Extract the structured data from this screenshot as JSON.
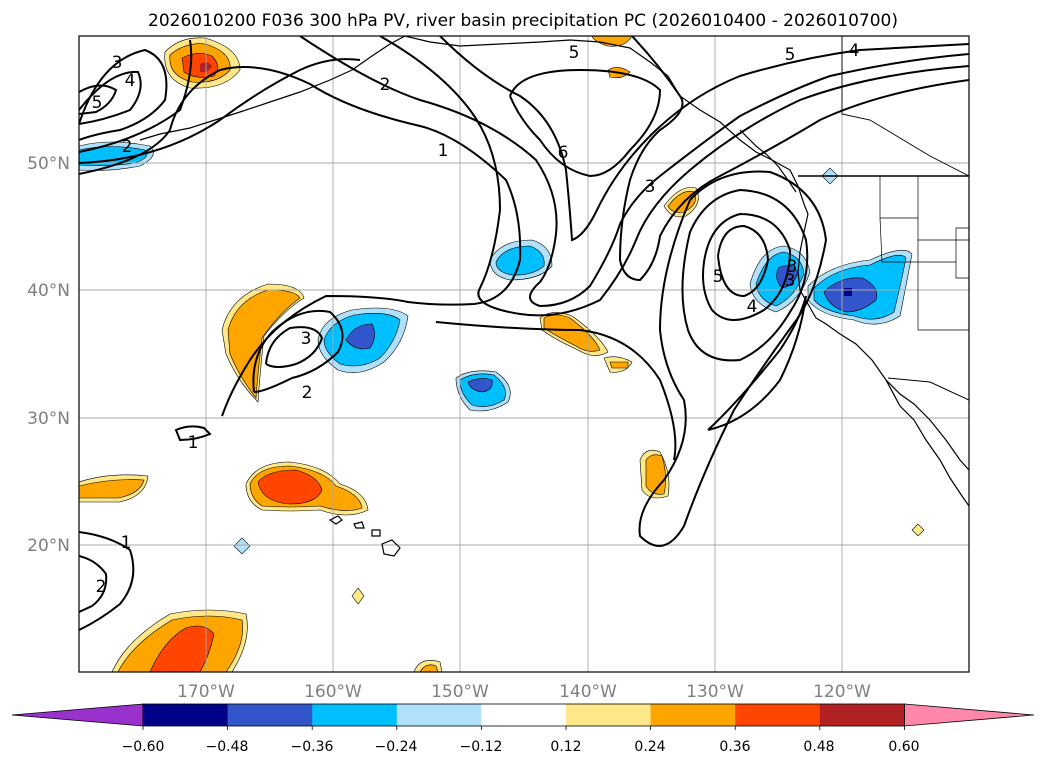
{
  "title": "2026010200 F036 300 hPa PV, river basin precipitation PC (2026010400 - 2026010700)",
  "map": {
    "projection": "PlateCarree",
    "lon_range": [
      -180,
      -110
    ],
    "lat_range": [
      10,
      60
    ],
    "gridlines": true,
    "lat_labels": [
      "50°N",
      "40°N",
      "30°N",
      "20°N"
    ],
    "lon_labels": [
      "170°W",
      "160°W",
      "150°W",
      "140°W",
      "130°W",
      "120°W"
    ]
  },
  "pv_contours": {
    "field": "300 hPa PV",
    "contour_labels": [
      "3",
      "4",
      "5",
      "2",
      "2",
      "1",
      "5",
      "6",
      "3",
      "5",
      "4",
      "3",
      "5",
      "4",
      "3",
      "3",
      "2",
      "1",
      "1",
      "2"
    ]
  },
  "precip_pc": {
    "field": "river basin precipitation PC",
    "period": "2026010400 - 2026010700"
  },
  "colorbar": {
    "ticks": [
      "−0.60",
      "−0.48",
      "−0.36",
      "−0.24",
      "−0.12",
      "0.12",
      "0.24",
      "0.36",
      "0.48",
      "0.60"
    ],
    "colors": [
      "#9932cc",
      "#000088",
      "#3355cc",
      "#00bfff",
      "#b0e0fa",
      "#ffffff",
      "#ffe88a",
      "#ffa500",
      "#ff4500",
      "#b22222",
      "#ff88aa"
    ],
    "extend": "both"
  }
}
